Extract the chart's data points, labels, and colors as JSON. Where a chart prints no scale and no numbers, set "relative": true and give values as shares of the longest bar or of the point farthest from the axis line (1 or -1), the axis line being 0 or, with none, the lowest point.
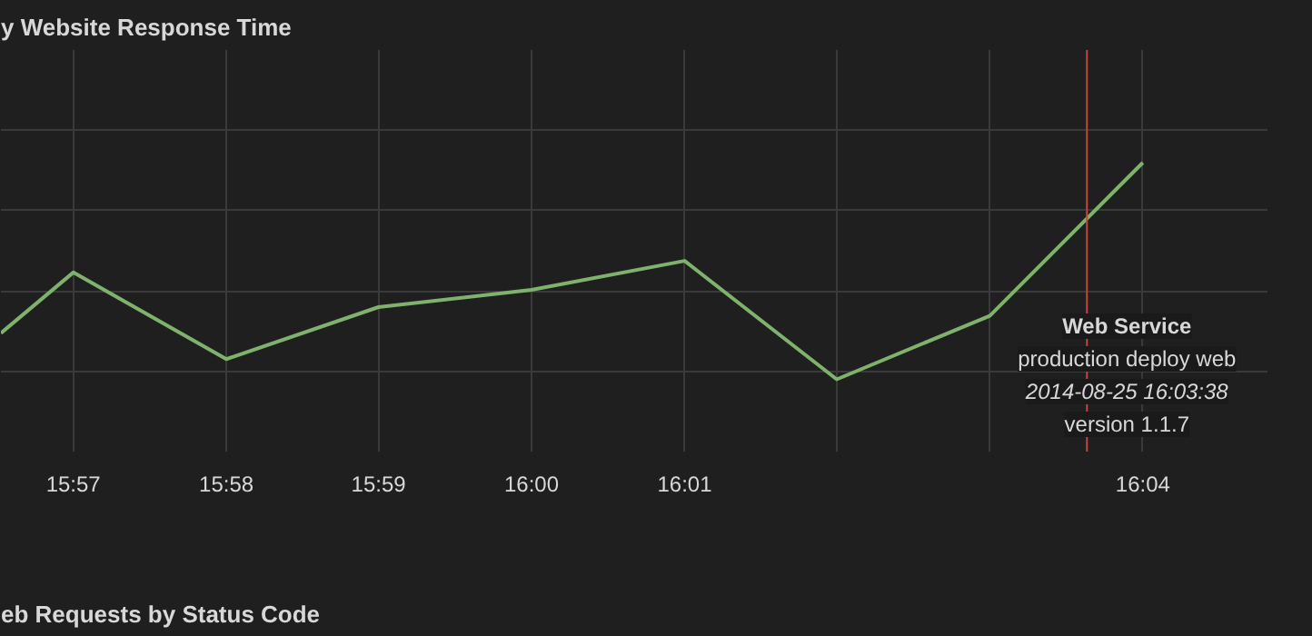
{
  "chart_data": [
    {
      "type": "line",
      "title": "y Website Response Time",
      "relative": true,
      "x": [
        15.9421,
        15.95,
        15.9667,
        15.9833,
        16.0,
        16.0167,
        16.0333,
        16.05,
        16.0667
      ],
      "series": [
        {
          "color": "#7eb26d",
          "values": [
            0.41,
            0.62,
            0.32,
            0.5,
            0.56,
            0.66,
            0.25,
            0.47,
            1.0
          ]
        }
      ],
      "xlim": [
        15.9421,
        16.0803
      ],
      "xticks": [
        {
          "value": 15.95,
          "label": "15:57"
        },
        {
          "value": 15.9667,
          "label": "15:58"
        },
        {
          "value": 15.9833,
          "label": "15:59"
        },
        {
          "value": 16.0,
          "label": "16:00"
        },
        {
          "value": 16.0167,
          "label": "16:01"
        },
        {
          "value": 16.0333,
          "label": null
        },
        {
          "value": 16.05,
          "label": null
        },
        {
          "value": 16.0667,
          "label": "16:04"
        }
      ],
      "grid": true,
      "marker": "none",
      "line_style": "solid",
      "ref_lines": [
        {
          "axis": "x",
          "value": 16.0606,
          "label": "Web Service",
          "color": "#c4463e"
        }
      ],
      "annotations": [
        "production deploy web",
        "2014-08-25 16:03:38",
        "version 1.1.7"
      ]
    },
    {
      "type": "other",
      "title": "eb Requests by Status Code"
    }
  ]
}
